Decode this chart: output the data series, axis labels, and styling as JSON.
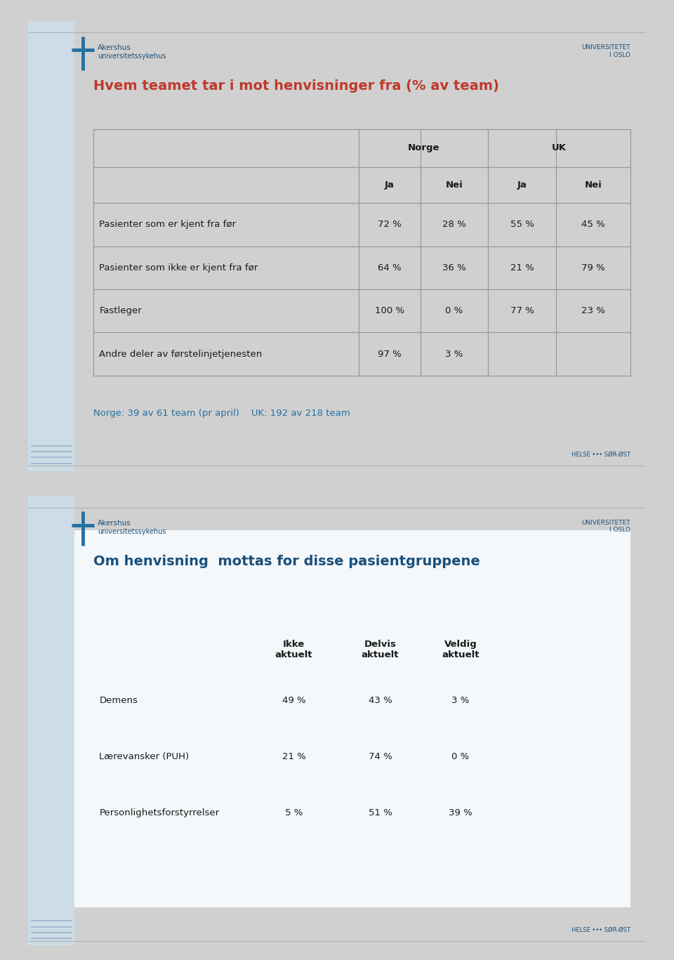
{
  "slide1": {
    "title": "Hvem teamet tar i mot henvisninger fra (% av team)",
    "title_color": "#c0392b",
    "table1": {
      "rows": [
        [
          "Pasienter som er kjent fra før",
          "72 %",
          "28 %",
          "55 %",
          "45 %"
        ],
        [
          "Pasienter som ikke er kjent fra før",
          "64 %",
          "36 %",
          "21 %",
          "79 %"
        ],
        [
          "Fastleger",
          "100 %",
          "0 %",
          "77 %",
          "23 %"
        ],
        [
          "Andre deler av førstelinjetjenesten",
          "97 %",
          "3 %",
          "",
          ""
        ]
      ]
    },
    "footnote": "Norge: 39 av 61 team (pr april)    UK: 192 av 218 team",
    "footnote_color": "#2471a3"
  },
  "slide2": {
    "title": "Om henvisning  mottas for disse pasientgruppene",
    "title_color": "#1a4f7a",
    "table2": {
      "col_headers": [
        "",
        "Ikke\naktuelt",
        "Delvis\naktuelt",
        "Veldig\naktuelt"
      ],
      "rows": [
        [
          "Demens",
          "49 %",
          "43 %",
          "3 %"
        ],
        [
          "Lærevansker (PUH)",
          "21 %",
          "74 %",
          "0 %"
        ],
        [
          "Personlighetsforstyrrelser",
          "5 %",
          "51 %",
          "39 %"
        ]
      ]
    }
  },
  "page_bg": "#d0d0d0",
  "slide_bg": "#ffffff",
  "left_bar_color": "#ccdde8",
  "border_color": "#999999",
  "text_color": "#1a1a1a",
  "helse_text": "HELSE ••• SØR-ØST",
  "akershus_line1": "Akershus",
  "akershus_line2": "universitetssykehus",
  "univ_text": "UNIVERSITETET\nI OSLO",
  "font_size_title": 14,
  "font_size_table": 9.5,
  "font_size_annot": 9,
  "font_size_logo": 7,
  "font_size_helse": 6
}
